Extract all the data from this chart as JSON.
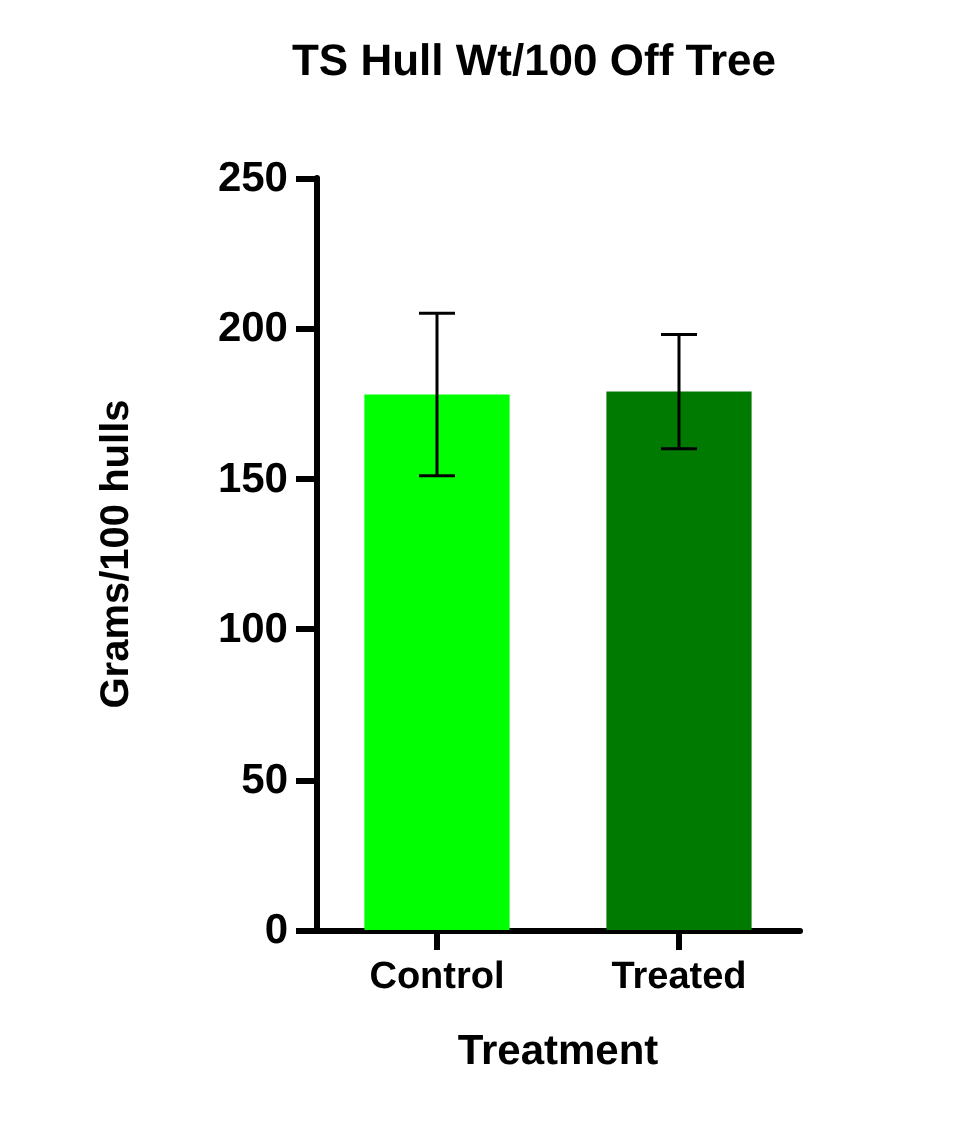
{
  "chart_data": {
    "type": "bar",
    "title": "TS Hull Wt/100 Off Tree",
    "xlabel": "Treatment",
    "ylabel": "Grams/100 hulls",
    "categories": [
      "Control",
      "Treated"
    ],
    "values": [
      178,
      179
    ],
    "colors": [
      "#00ff00",
      "#007a00"
    ],
    "errors": [
      27,
      19
    ],
    "ylim": [
      0,
      250
    ],
    "yticks": [
      0,
      50,
      100,
      150,
      200,
      250
    ],
    "grid": false
  }
}
